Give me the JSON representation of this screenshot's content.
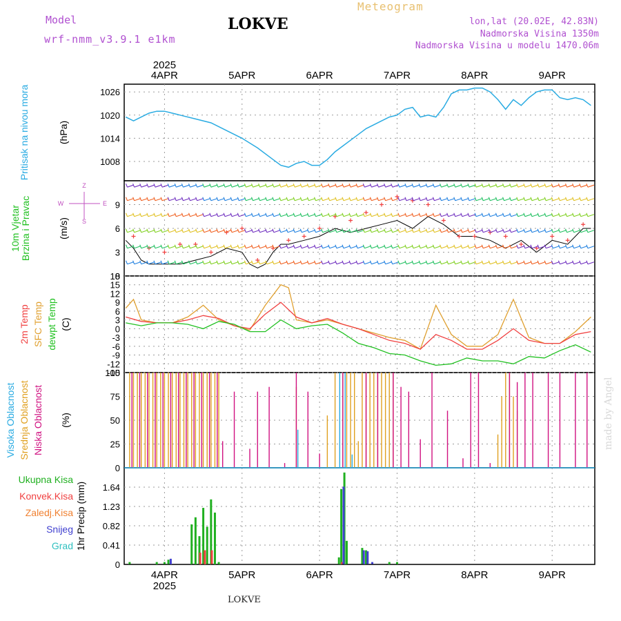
{
  "header": {
    "model_label": "Model",
    "model_name": "wrf-nmm_v3.9.1 e1km",
    "station": "LOKVE",
    "subtitle": "Meteogram",
    "coords": "lon,lat (20.02E, 42.83N)",
    "altitude": "Nadmorska Visina 1350m",
    "model_altitude": "Nadmorska Visina u modelu 1470.06m"
  },
  "credit": "made by Angel",
  "footer_station": "LOKVE",
  "colors": {
    "pressure": "#29abe2",
    "temp": "#f04040",
    "sfc_temp": "#e0a030",
    "dewpt": "#20c020",
    "cloud_high": "#29abe2",
    "cloud_mid": "#e0a020",
    "cloud_low": "#d01080",
    "precip_total": "#20b020",
    "precip_conv": "#f04040",
    "precip_frz": "#f08030",
    "precip_snow": "#4040d0",
    "precip_grad": "#30c0c0",
    "wind_speed": "#000000",
    "wind_gust": "#f04040",
    "wind_label": "#c050c0"
  },
  "chart_data": [
    {
      "panel": "pressure",
      "type": "line",
      "ylabel": "Pritisak na nivou mora",
      "unit": "(hPa)",
      "ylim": [
        1003,
        1028
      ],
      "yticks": [
        1008,
        1014,
        1020,
        1026
      ],
      "xticks_top_year": "2025",
      "xticks": [
        "4APR",
        "5APR",
        "6APR",
        "7APR",
        "8APR",
        "9APR"
      ],
      "series": [
        {
          "x": [
            -0.5,
            -0.4,
            -0.3,
            -0.2,
            -0.1,
            0,
            0.1,
            0.2,
            0.4,
            0.6,
            0.8,
            1.0,
            1.2,
            1.4,
            1.5,
            1.6,
            1.7,
            1.8,
            1.9,
            2.0,
            2.1,
            2.2,
            2.3,
            2.4,
            2.5,
            2.6,
            2.7,
            2.8,
            2.9,
            3.0,
            3.1,
            3.2,
            3.3,
            3.4,
            3.5,
            3.6,
            3.7,
            3.8,
            3.9,
            4.0,
            4.1,
            4.2,
            4.3,
            4.4,
            4.5,
            4.6,
            4.7,
            4.8,
            4.9,
            5.0,
            5.1,
            5.2,
            5.3,
            5.4,
            5.5
          ],
          "values": [
            1019.5,
            1018.5,
            1019.5,
            1020.5,
            1021,
            1021,
            1020.5,
            1020,
            1019,
            1018,
            1016,
            1014,
            1011.5,
            1008.5,
            1007,
            1006.5,
            1007.5,
            1008,
            1007,
            1007,
            1008.5,
            1010.5,
            1012,
            1013.5,
            1015,
            1016.5,
            1017.5,
            1018.5,
            1019.5,
            1020,
            1021.5,
            1022,
            1019.5,
            1020,
            1019.5,
            1022,
            1025.5,
            1026.5,
            1026.5,
            1027,
            1027,
            1026,
            1024,
            1021.5,
            1024,
            1022.5,
            1024.5,
            1026,
            1026.5,
            1026.5,
            1024.5,
            1024,
            1024.5,
            1024,
            1022.5
          ]
        }
      ]
    },
    {
      "panel": "wind",
      "type": "line",
      "ylabel": "10m Vjetar Brzina i Pravac",
      "unit": "(m/s)",
      "ylim": [
        0,
        12
      ],
      "yticks": [
        0,
        3,
        6,
        9
      ],
      "compass_labels": [
        "Z",
        "E",
        "W",
        "S"
      ],
      "series": [
        {
          "name": "speed",
          "x": [
            -0.5,
            -0.4,
            -0.3,
            -0.2,
            -0.1,
            0,
            0.2,
            0.4,
            0.6,
            0.8,
            1.0,
            1.1,
            1.2,
            1.3,
            1.4,
            1.5,
            1.6,
            1.8,
            2.0,
            2.2,
            2.4,
            2.6,
            2.8,
            3.0,
            3.2,
            3.4,
            3.6,
            3.8,
            4.0,
            4.2,
            4.4,
            4.6,
            4.8,
            5.0,
            5.2,
            5.4,
            5.5
          ],
          "values": [
            4.5,
            3.5,
            2,
            1.5,
            1.5,
            1.5,
            1.5,
            2,
            2.5,
            3.5,
            3,
            1.5,
            1,
            1.5,
            3,
            4,
            4,
            4.5,
            5,
            6,
            5.5,
            6,
            6.5,
            7,
            6,
            7.5,
            6.5,
            5,
            5,
            4.5,
            3.5,
            4.5,
            3,
            4.5,
            4,
            6,
            6
          ]
        },
        {
          "name": "gust",
          "x": [
            -0.4,
            -0.2,
            0,
            0.2,
            0.4,
            0.6,
            0.8,
            1.0,
            1.2,
            1.4,
            1.6,
            1.8,
            2.0,
            2.2,
            2.4,
            2.6,
            2.8,
            3.0,
            3.2,
            3.4,
            3.6,
            3.8,
            4.0,
            4.2,
            4.4,
            4.6,
            4.8,
            5.0,
            5.2,
            5.4
          ],
          "values": [
            5,
            3.5,
            3,
            4,
            4,
            3,
            5.5,
            6,
            2,
            3.5,
            4.5,
            5,
            6,
            7.5,
            7,
            8,
            9,
            10,
            9.5,
            9,
            7,
            5,
            5,
            5.5,
            5,
            4,
            3.5,
            5,
            4.5,
            6.5
          ]
        }
      ]
    },
    {
      "panel": "temperature",
      "type": "line",
      "ylabel": [
        "2m Temp",
        "SFC Temp",
        "dewpt Temp"
      ],
      "unit": "(C)",
      "ylim": [
        -15,
        18
      ],
      "yticks": [
        -15,
        -12,
        -9,
        -6,
        -3,
        0,
        3,
        6,
        9,
        12,
        15,
        18
      ],
      "series": [
        {
          "name": "2m Temp",
          "x": [
            -0.5,
            -0.3,
            -0.1,
            0.1,
            0.3,
            0.5,
            0.7,
            0.9,
            1.1,
            1.3,
            1.5,
            1.7,
            1.9,
            2.1,
            2.3,
            2.5,
            2.7,
            2.9,
            3.1,
            3.3,
            3.5,
            3.7,
            3.9,
            4.1,
            4.3,
            4.5,
            4.7,
            4.9,
            5.1,
            5.3,
            5.5
          ],
          "values": [
            4,
            2.5,
            2,
            2,
            3,
            4.5,
            3.5,
            1,
            0,
            5,
            9,
            4,
            2,
            3.5,
            1.5,
            0,
            -2,
            -4,
            -5,
            -7,
            -2,
            -4,
            -7,
            -7,
            -4,
            0,
            -4,
            -5,
            -5,
            -2,
            -1
          ]
        },
        {
          "name": "SFC Temp",
          "x": [
            -0.5,
            -0.4,
            -0.3,
            -0.1,
            0.1,
            0.3,
            0.5,
            0.7,
            0.9,
            1.1,
            1.3,
            1.5,
            1.6,
            1.7,
            1.9,
            2.1,
            2.3,
            2.5,
            2.7,
            2.9,
            3.1,
            3.3,
            3.5,
            3.7,
            3.9,
            4.1,
            4.3,
            4.5,
            4.7,
            4.9,
            5.1,
            5.3,
            5.5
          ],
          "values": [
            7,
            10,
            3,
            2,
            2,
            4,
            8,
            3,
            1,
            -0.5,
            8,
            15,
            14,
            3,
            2,
            3,
            1.5,
            0,
            -1.5,
            -3,
            -4,
            -7,
            8,
            -2,
            -6,
            -6,
            -2,
            10,
            -3,
            -5,
            -5,
            -1,
            4
          ]
        },
        {
          "name": "dewpt Temp",
          "x": [
            -0.5,
            -0.3,
            -0.1,
            0.1,
            0.3,
            0.5,
            0.7,
            0.9,
            1.1,
            1.3,
            1.5,
            1.7,
            1.9,
            2.1,
            2.3,
            2.5,
            2.7,
            2.9,
            3.1,
            3.3,
            3.5,
            3.7,
            3.9,
            4.1,
            4.3,
            4.5,
            4.7,
            4.9,
            5.1,
            5.3,
            5.5
          ],
          "values": [
            2,
            1,
            2,
            2,
            1.5,
            0,
            2.5,
            1.5,
            -1,
            -1,
            3,
            0,
            1,
            1.5,
            -1.5,
            -5,
            -6.5,
            -8.5,
            -9,
            -11,
            -12.5,
            -12,
            -10,
            -11,
            -11,
            -12,
            -9.5,
            -10,
            -7.5,
            -5.5,
            -8
          ]
        }
      ]
    },
    {
      "panel": "clouds",
      "type": "bar",
      "ylabel": [
        "Visoka Oblacnost",
        "Srednja Oblacnost",
        "Niska Oblacnost"
      ],
      "unit": "(%)",
      "ylim": [
        0,
        100
      ],
      "yticks": [
        0,
        25,
        50,
        75,
        100
      ],
      "series": [
        {
          "name": "Srednja Oblacnost",
          "x": [
            -0.45,
            -0.4,
            -0.35,
            -0.3,
            -0.25,
            -0.2,
            -0.15,
            -0.1,
            -0.05,
            0.0,
            0.05,
            0.1,
            0.15,
            0.2,
            0.25,
            0.3,
            0.35,
            0.4,
            0.45,
            0.5,
            0.55,
            0.6,
            0.65,
            0.7,
            1.7,
            2.1,
            2.2,
            2.3,
            2.35,
            2.4,
            2.45,
            2.5,
            2.55,
            2.6,
            2.65,
            2.7,
            2.75,
            2.8,
            2.85,
            2.9,
            2.95,
            4.3,
            4.35,
            4.4,
            4.45,
            4.5,
            4.55
          ],
          "values": [
            100,
            100,
            100,
            100,
            100,
            100,
            100,
            100,
            100,
            100,
            100,
            100,
            100,
            100,
            100,
            100,
            100,
            100,
            100,
            100,
            100,
            100,
            100,
            100,
            85,
            55,
            100,
            100,
            100,
            100,
            100,
            28,
            100,
            100,
            100,
            100,
            100,
            100,
            100,
            100,
            100,
            35,
            75,
            100,
            100,
            75,
            60
          ]
        },
        {
          "name": "Niska Oblacnost",
          "x": [
            -0.42,
            -0.32,
            -0.22,
            -0.12,
            -0.02,
            0.08,
            0.18,
            0.28,
            0.38,
            0.48,
            0.58,
            0.68,
            0.75,
            0.9,
            1.1,
            1.2,
            1.35,
            1.55,
            1.7,
            1.85,
            2.0,
            2.3,
            2.6,
            2.75,
            2.95,
            3.05,
            3.15,
            3.3,
            3.45,
            3.65,
            3.85,
            3.95,
            4.05,
            4.2,
            4.45,
            4.55,
            4.65,
            4.75,
            4.95,
            5.1,
            5.3,
            5.45
          ],
          "values": [
            100,
            100,
            100,
            100,
            100,
            100,
            100,
            100,
            100,
            100,
            100,
            100,
            28,
            80,
            20,
            80,
            85,
            5,
            100,
            80,
            15,
            100,
            100,
            100,
            100,
            85,
            80,
            30,
            100,
            60,
            10,
            100,
            100,
            5,
            100,
            90,
            100,
            100,
            100,
            100,
            100,
            100
          ]
        },
        {
          "name": "Visoka Oblacnost",
          "x": [
            1.72,
            2.26,
            2.33,
            2.42
          ],
          "values": [
            40,
            100,
            100,
            14
          ]
        }
      ]
    },
    {
      "panel": "precipitation",
      "type": "bar",
      "ylabel": "1hr Precip (mm)",
      "legend": [
        "Ukupna Kisa",
        "Konvek.Kisa",
        "Zaledj.Kisa",
        "Snijeg",
        "Grad"
      ],
      "ylim": [
        0,
        2.05
      ],
      "yticks": [
        0,
        0.41,
        0.82,
        1.23,
        1.64
      ],
      "xticks": [
        "4APR",
        "5APR",
        "6APR",
        "7APR",
        "8APR",
        "9APR"
      ],
      "xticks_bottom_year": "2025",
      "series": [
        {
          "name": "Ukupna Kisa",
          "x": [
            -0.45,
            -0.1,
            0.0,
            0.05,
            0.35,
            0.4,
            0.45,
            0.5,
            0.55,
            0.6,
            0.65,
            0.7,
            2.25,
            2.28,
            2.32,
            2.35,
            2.55,
            2.6,
            2.9,
            3.0
          ],
          "values": [
            0.05,
            0.05,
            0.05,
            0.1,
            0.85,
            1.0,
            0.6,
            1.2,
            0.8,
            1.38,
            1.1,
            0.05,
            0.15,
            1.6,
            1.95,
            0.5,
            0.35,
            0.3,
            0.05,
            0.05
          ]
        },
        {
          "name": "Konvek.Kisa",
          "x": [
            0.46,
            0.52,
            0.61,
            2.29
          ],
          "values": [
            0.25,
            0.3,
            0.3,
            0.05
          ]
        },
        {
          "name": "Snijeg",
          "x": [
            0.08,
            2.31,
            2.57,
            2.62,
            2.68
          ],
          "values": [
            0.12,
            1.65,
            0.3,
            0.28,
            0.05
          ]
        }
      ]
    }
  ]
}
